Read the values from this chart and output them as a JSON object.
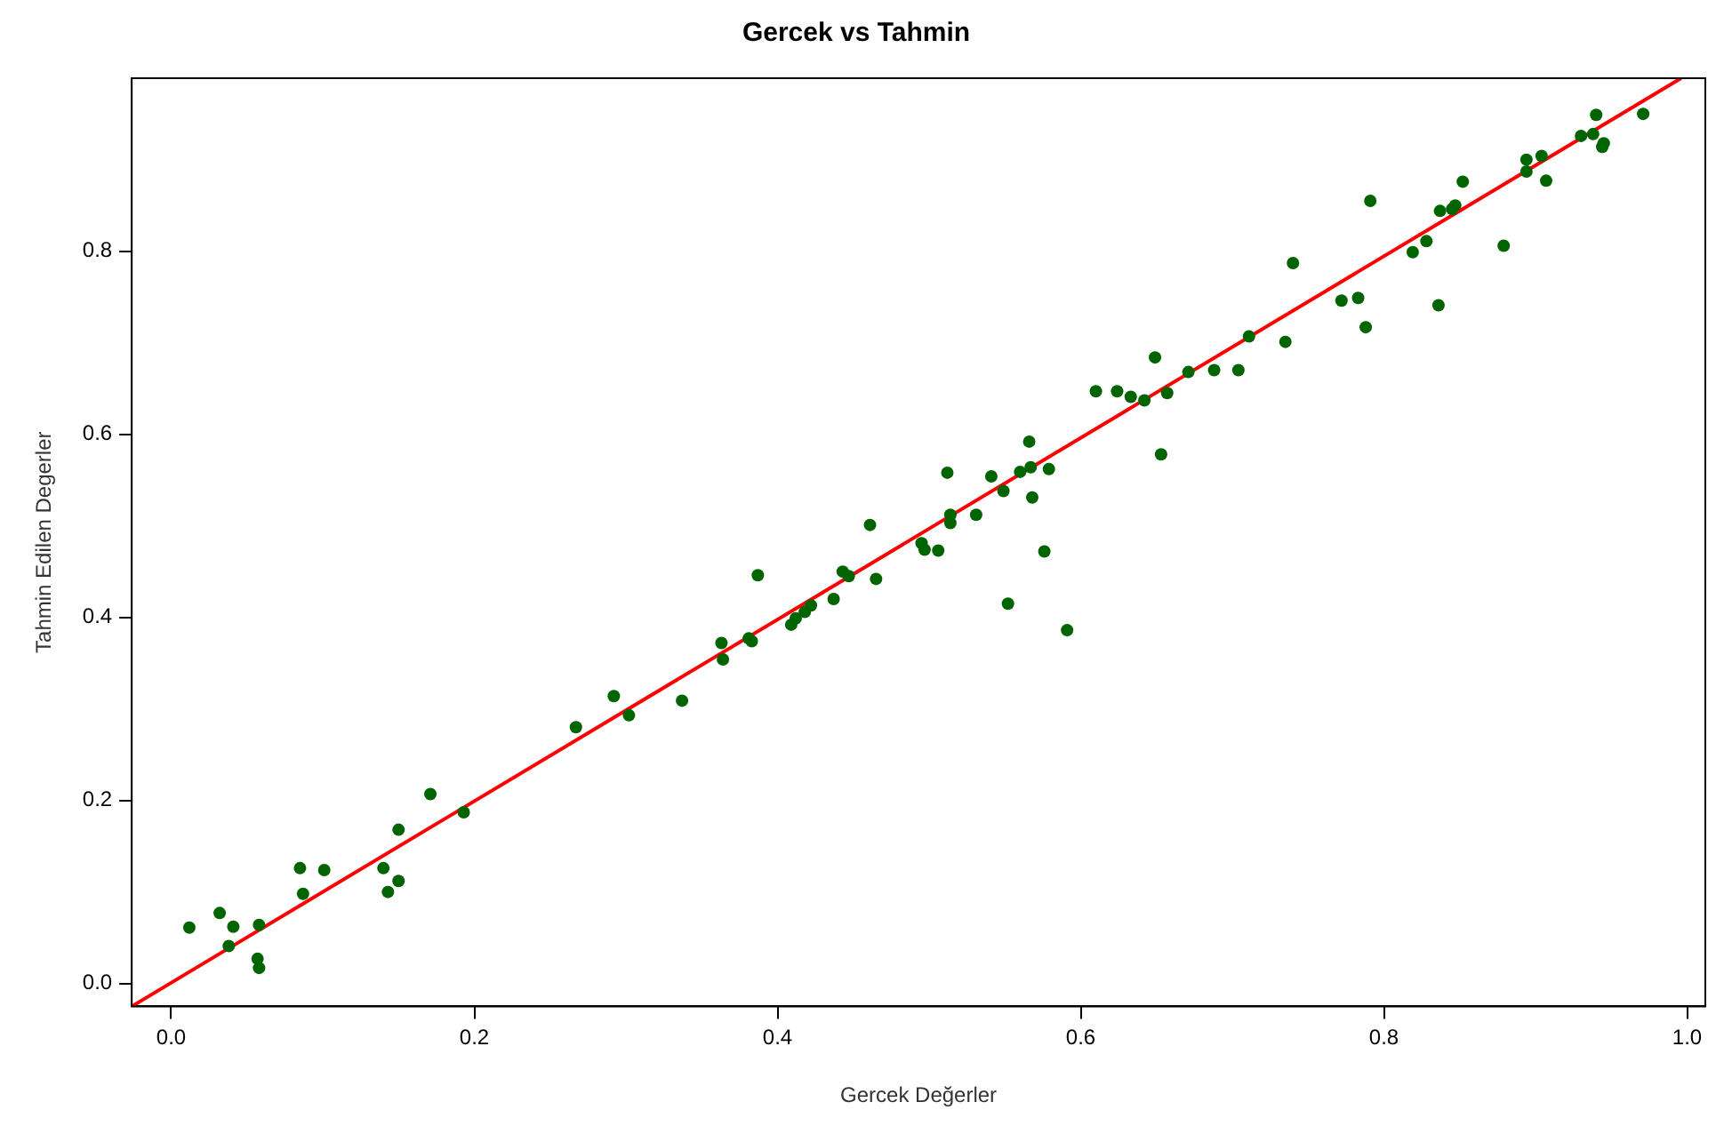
{
  "chart_data": {
    "type": "scatter",
    "title": "Gercek vs Tahmin",
    "xlabel": "Gercek Değerler",
    "ylabel": "Tahmin Edilen Degerler",
    "xlim": [
      -0.026,
      1.012
    ],
    "ylim": [
      -0.025,
      0.989
    ],
    "xticks": [
      {
        "value": 0,
        "label": "0.0"
      },
      0.2,
      0.4,
      0.6,
      0.8,
      {
        "value": 1,
        "label": "1.0"
      }
    ],
    "yticks": [
      {
        "value": 0,
        "label": "0.0"
      },
      0.2,
      0.4,
      0.6,
      0.8
    ],
    "grid": false,
    "legend": false,
    "marker": "circle",
    "series": [
      {
        "color": "#006400",
        "x": [
          0.012,
          0.032,
          0.041,
          0.038,
          0.057,
          0.058,
          0.058,
          0.085,
          0.087,
          0.101,
          0.14,
          0.143,
          0.15,
          0.15,
          0.171,
          0.193,
          0.267,
          0.292,
          0.302,
          0.337,
          0.363,
          0.364,
          0.381,
          0.383,
          0.387,
          0.409,
          0.412,
          0.418,
          0.422,
          0.437,
          0.443,
          0.447,
          0.461,
          0.465,
          0.495,
          0.497,
          0.506,
          0.512,
          0.514,
          0.514,
          0.531,
          0.541,
          0.549,
          0.552,
          0.56,
          0.566,
          0.567,
          0.568,
          0.576,
          0.579,
          0.591,
          0.61,
          0.624,
          0.633,
          0.642,
          0.649,
          0.657,
          0.653,
          0.671,
          0.688,
          0.704,
          0.711,
          0.735,
          0.74,
          0.772,
          0.783,
          0.788,
          0.791,
          0.819,
          0.828,
          0.836,
          0.837,
          0.845,
          0.847,
          0.852,
          0.879,
          0.894,
          0.894,
          0.904,
          0.907,
          0.93,
          0.938,
          0.94,
          0.944,
          0.945,
          0.971
        ],
        "values": [
          0.061,
          0.077,
          0.062,
          0.041,
          0.027,
          0.017,
          0.064,
          0.126,
          0.098,
          0.124,
          0.126,
          0.1,
          0.112,
          0.168,
          0.207,
          0.187,
          0.28,
          0.314,
          0.293,
          0.309,
          0.372,
          0.354,
          0.377,
          0.374,
          0.446,
          0.392,
          0.399,
          0.406,
          0.413,
          0.42,
          0.45,
          0.445,
          0.501,
          0.442,
          0.481,
          0.474,
          0.473,
          0.558,
          0.512,
          0.503,
          0.512,
          0.554,
          0.538,
          0.415,
          0.559,
          0.592,
          0.564,
          0.531,
          0.472,
          0.562,
          0.386,
          0.647,
          0.647,
          0.641,
          0.637,
          0.684,
          0.645,
          0.578,
          0.668,
          0.67,
          0.67,
          0.707,
          0.701,
          0.787,
          0.746,
          0.749,
          0.717,
          0.855,
          0.799,
          0.811,
          0.741,
          0.844,
          0.846,
          0.85,
          0.876,
          0.806,
          0.9,
          0.887,
          0.904,
          0.877,
          0.926,
          0.928,
          0.949,
          0.914,
          0.918,
          0.95
        ]
      },
      {
        "type": "line",
        "color": "#ff0000",
        "line_style": "solid",
        "marker": "none",
        "x": [
          -0.026,
          0.996
        ],
        "values": [
          -0.025,
          0.989
        ]
      }
    ]
  }
}
